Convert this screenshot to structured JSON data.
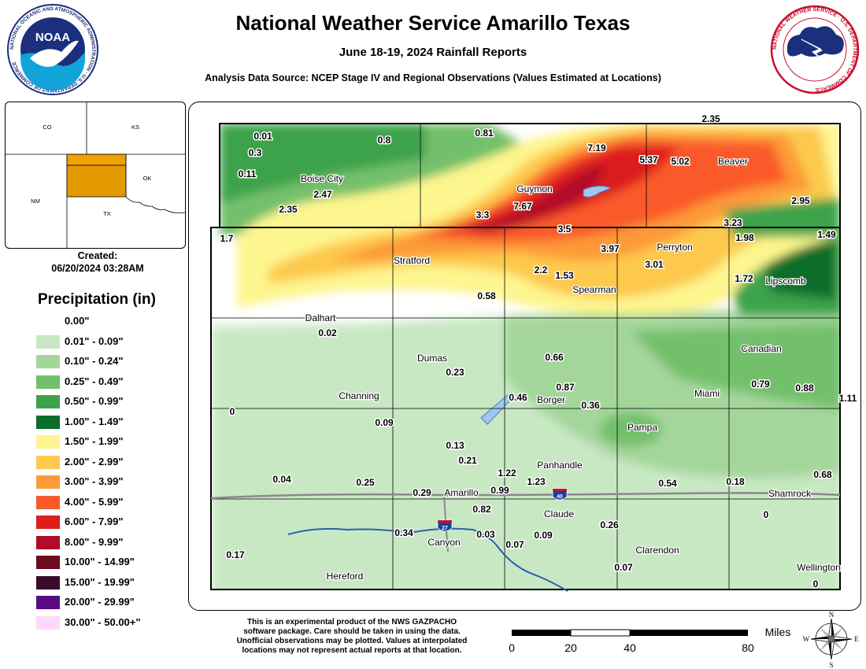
{
  "header": {
    "title": "National Weather Service Amarillo Texas",
    "subtitle": "June 18-19, 2024 Rainfall Reports",
    "source": "Analysis Data Source: NCEP Stage IV and Regional Observations (Values Estimated at Locations)"
  },
  "logos": {
    "noaa_word": "NOAA",
    "noaa_ring": "NATIONAL OCEANIC AND ATMOSPHERIC ADMINISTRATION · U.S. DEPARTMENT OF COMMERCE",
    "nws_ring": "NATIONAL WEATHER SERVICE · U.S. DEPARTMENT OF COMMERCE"
  },
  "inset": {
    "states": [
      "CO",
      "KS",
      "NM",
      "OK",
      "TX"
    ]
  },
  "created": {
    "label": "Created:",
    "value": "06/20/2024 03:28AM"
  },
  "legend": {
    "title": "Precipitation (in)",
    "items": [
      {
        "label": "0.00\"",
        "color": "#ffffff"
      },
      {
        "label": "0.01\" - 0.09\"",
        "color": "#c8e8c3"
      },
      {
        "label": "0.10\" - 0.24\"",
        "color": "#a4d69c"
      },
      {
        "label": "0.25\" - 0.49\"",
        "color": "#73c06c"
      },
      {
        "label": "0.50\" - 0.99\"",
        "color": "#3ca34b"
      },
      {
        "label": "1.00\" - 1.49\"",
        "color": "#0b6e2a"
      },
      {
        "label": "1.50\" - 1.99\"",
        "color": "#fdf58e"
      },
      {
        "label": "2.00\" - 2.99\"",
        "color": "#fdc94e"
      },
      {
        "label": "3.00\" - 3.99\"",
        "color": "#fd9a38"
      },
      {
        "label": "4.00\" - 5.99\"",
        "color": "#fa5a2a"
      },
      {
        "label": "6.00\" - 7.99\"",
        "color": "#dc1e1e"
      },
      {
        "label": "8.00\" - 9.99\"",
        "color": "#b00b2a"
      },
      {
        "label": "10.00\" - 14.99\"",
        "color": "#6e0a1e"
      },
      {
        "label": "15.00\" - 19.99\"",
        "color": "#3a0a2e"
      },
      {
        "label": "20.00\" - 29.99\"",
        "color": "#5a0a80"
      },
      {
        "label": "30.00\" - 50.00+\"",
        "color": "#fdd8fc"
      }
    ]
  },
  "map": {
    "cities": [
      "Boise City",
      "Guymon",
      "Beaver",
      "Stratford",
      "Perryton",
      "Spearman",
      "Lipscomb",
      "Dalhart",
      "Dumas",
      "Canadian",
      "Channing",
      "Borger",
      "Miami",
      "Pampa",
      "Panhandle",
      "Amarillo",
      "Shamrock",
      "Claude",
      "Canyon",
      "Clarendon",
      "Wellington",
      "Hereford"
    ],
    "values": [
      "0.01",
      "0.3",
      "0.11",
      "0.8",
      "0.81",
      "2.35",
      "7.19",
      "5.37",
      "5.02",
      "2.47",
      "2.35",
      "3.3",
      "7.67",
      "2.95",
      "3.23",
      "1.7",
      "3.5",
      "1.98",
      "1.49",
      "3.97",
      "3.01",
      "2.2",
      "1.53",
      "1.72",
      "0.58",
      "0.02",
      "0.66",
      "0.23",
      "0.87",
      "0.79",
      "0.88",
      "0.46",
      "0.36",
      "1.11",
      "0",
      "0.09",
      "0.13",
      "0.21",
      "1.22",
      "1.23",
      "0.04",
      "0.25",
      "0.29",
      "0.99",
      "0.54",
      "0.18",
      "0.68",
      "0.82",
      "0",
      "0.26",
      "0.34",
      "0.03",
      "0.07",
      "0.09",
      "0.17",
      "0.07",
      "0"
    ],
    "highway_shields": [
      "40",
      "27"
    ]
  },
  "footer": {
    "disclaimer": [
      "This is an experimental product of the NWS GAZPACHO",
      "software package. Care should be taken in using the data.",
      "Unofficial observations may be plotted. Values at interpolated",
      "locations may not represent actual reports at that location."
    ],
    "scale_unit": "Miles",
    "scale_ticks": [
      "0",
      "20",
      "40",
      "80"
    ],
    "compass": [
      "N",
      "E",
      "S",
      "W"
    ]
  }
}
